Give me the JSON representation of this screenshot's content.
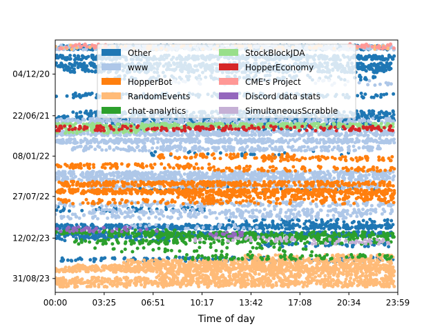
{
  "chart_data": {
    "type": "scatter",
    "title": "",
    "xlabel": "Time of day",
    "ylabel": "",
    "y_inverted": true,
    "x_ticks": [
      "00:00",
      "03:25",
      "06:51",
      "10:17",
      "13:42",
      "17:08",
      "20:34",
      "23:59"
    ],
    "y_ticks": [
      "04/12/20",
      "22/06/21",
      "08/01/22",
      "27/07/22",
      "12/02/23",
      "31/08/23"
    ],
    "legend_position": "upper center",
    "legend_columns": 2,
    "grid": false,
    "series": [
      {
        "name": "Other",
        "color": "#1f77b4",
        "bands": [
          [
            0.03,
            0.01,
            0.98,
            1.0
          ],
          [
            0.07,
            0.0,
            0.99,
            0.9
          ],
          [
            0.1,
            0.0,
            0.99,
            0.8
          ],
          [
            0.12,
            0.02,
            0.98,
            0.55
          ],
          [
            0.15,
            0.15,
            0.95,
            0.3
          ],
          [
            0.22,
            0.0,
            0.99,
            0.35
          ],
          [
            0.29,
            0.05,
            0.99,
            0.45
          ],
          [
            0.31,
            0.0,
            0.99,
            0.6
          ],
          [
            0.33,
            0.1,
            0.95,
            0.35
          ],
          [
            0.35,
            0.15,
            0.9,
            0.2
          ],
          [
            0.45,
            0.25,
            0.9,
            0.08
          ],
          [
            0.59,
            0.2,
            0.95,
            0.15
          ],
          [
            0.67,
            0.0,
            0.45,
            0.25
          ],
          [
            0.72,
            0.5,
            0.99,
            0.25
          ],
          [
            0.74,
            0.0,
            0.99,
            0.9
          ],
          [
            0.77,
            0.0,
            0.99,
            0.85
          ],
          [
            0.79,
            0.0,
            0.35,
            0.3
          ],
          [
            0.81,
            0.6,
            0.99,
            0.3
          ],
          [
            0.87,
            0.0,
            0.99,
            0.3
          ]
        ]
      },
      {
        "name": "www",
        "color": "#aec7e8",
        "bands": [
          [
            0.03,
            0.0,
            0.99,
            0.85
          ],
          [
            0.17,
            0.2,
            0.99,
            0.15
          ],
          [
            0.32,
            0.0,
            0.99,
            0.55
          ],
          [
            0.37,
            0.0,
            0.99,
            0.95
          ],
          [
            0.4,
            0.0,
            0.99,
            0.95
          ],
          [
            0.43,
            0.05,
            0.95,
            0.6
          ],
          [
            0.53,
            0.0,
            0.99,
            0.9
          ],
          [
            0.55,
            0.0,
            0.99,
            0.8
          ],
          [
            0.58,
            0.1,
            0.95,
            0.5
          ],
          [
            0.65,
            0.0,
            0.99,
            0.4
          ],
          [
            0.68,
            0.1,
            0.99,
            0.45
          ],
          [
            0.7,
            0.0,
            0.9,
            0.3
          ],
          [
            0.74,
            0.2,
            0.6,
            0.15
          ]
        ]
      },
      {
        "name": "HopperBot",
        "color": "#ff7f0e",
        "bands": [
          [
            0.46,
            0.3,
            0.7,
            0.35
          ],
          [
            0.47,
            0.6,
            0.99,
            0.4
          ],
          [
            0.5,
            0.0,
            0.45,
            0.5
          ],
          [
            0.51,
            0.45,
            0.99,
            0.35
          ],
          [
            0.57,
            0.0,
            0.99,
            0.8
          ],
          [
            0.6,
            0.0,
            0.99,
            0.95
          ],
          [
            0.62,
            0.35,
            0.99,
            0.5
          ],
          [
            0.64,
            0.0,
            0.99,
            0.3
          ]
        ]
      },
      {
        "name": "RandomEvents",
        "color": "#ffbb78",
        "bands": [
          [
            0.03,
            0.0,
            0.99,
            0.15
          ],
          [
            0.86,
            0.55,
            0.99,
            0.5
          ],
          [
            0.88,
            0.2,
            0.99,
            0.75
          ],
          [
            0.9,
            0.05,
            0.99,
            0.85
          ],
          [
            0.91,
            0.0,
            0.99,
            0.8
          ],
          [
            0.93,
            0.3,
            0.99,
            0.6
          ],
          [
            0.95,
            0.0,
            0.99,
            0.55
          ],
          [
            0.96,
            0.0,
            0.99,
            0.4
          ],
          [
            0.97,
            0.0,
            0.99,
            0.5
          ]
        ]
      },
      {
        "name": "chat-analytics",
        "color": "#2ca02c",
        "bands": [
          [
            0.76,
            0.0,
            0.35,
            0.5
          ],
          [
            0.77,
            0.15,
            0.99,
            0.4
          ],
          [
            0.78,
            0.3,
            0.99,
            0.6
          ],
          [
            0.8,
            0.05,
            0.99,
            0.35
          ],
          [
            0.83,
            0.1,
            0.75,
            0.12
          ],
          [
            0.86,
            0.35,
            0.99,
            0.3
          ]
        ]
      },
      {
        "name": "StockBlockJDA",
        "color": "#98df8a",
        "bands": [
          [
            0.34,
            0.0,
            0.99,
            0.95
          ],
          [
            0.36,
            0.0,
            0.3,
            0.5
          ]
        ]
      },
      {
        "name": "HopperEconomy",
        "color": "#d62728",
        "bands": [
          [
            0.35,
            0.0,
            0.99,
            0.4
          ]
        ]
      },
      {
        "name": "CME's Project",
        "color": "#ff9896",
        "bands": [
          [
            0.025,
            0.0,
            0.15,
            0.4
          ],
          [
            0.025,
            0.85,
            0.99,
            0.4
          ]
        ]
      },
      {
        "name": "Discord data stats",
        "color": "#9467bd",
        "bands": [
          [
            0.75,
            0.0,
            0.3,
            0.35
          ],
          [
            0.77,
            0.45,
            0.55,
            0.5
          ]
        ]
      },
      {
        "name": "SimultaneousScrabble",
        "color": "#c5b0d5",
        "bands": [
          [
            0.79,
            0.4,
            0.7,
            0.25
          ],
          [
            0.8,
            0.75,
            0.99,
            0.3
          ]
        ]
      }
    ]
  }
}
